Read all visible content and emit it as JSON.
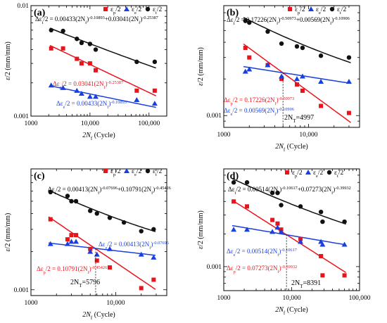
{
  "chart_data": [
    {
      "type": "scatter",
      "panel_label": "(a)",
      "x_scale": "log",
      "y_scale": "log",
      "xlim": [
        1000,
        200000
      ],
      "ylim": [
        0.001,
        0.01
      ],
      "x_ticks": [
        1000,
        10000,
        100000
      ],
      "x_tick_labels": [
        "1000",
        "10,000",
        "100,000"
      ],
      "y_ticks": [
        0.001,
        0.01
      ],
      "y_tick_labels": [
        "0.001",
        "0.01"
      ],
      "legend": [
        "εp/2",
        "εe/2",
        "εt/2"
      ],
      "colors": {
        "plastic": "#e8141b",
        "elastic": "#1a3fe0",
        "total": "#111111"
      },
      "series": [
        {
          "name": "εp/2",
          "marker": "square",
          "color": "#e8141b",
          "x": [
            2200,
            3500,
            6000,
            7200,
            10000,
            12500,
            62000,
            125000
          ],
          "y": [
            0.0041,
            0.0041,
            0.0033,
            0.003,
            0.003,
            0.0026,
            0.0017,
            0.0017
          ],
          "fit": {
            "coef": 0.03041,
            "exp": -0.25387
          }
        },
        {
          "name": "εe/2",
          "marker": "triangle",
          "color": "#1a3fe0",
          "x": [
            2200,
            3500,
            6000,
            7200,
            10000,
            12500,
            62000,
            125000
          ],
          "y": [
            0.0019,
            0.0018,
            0.0017,
            0.0016,
            0.0015,
            0.0015,
            0.0014,
            0.0013
          ],
          "fit": {
            "coef": 0.00433,
            "exp": -0.10893
          }
        },
        {
          "name": "εt/2",
          "marker": "circle",
          "color": "#111111",
          "x": [
            2200,
            3500,
            6000,
            7200,
            10000,
            12500,
            62000,
            125000
          ],
          "y": [
            0.006,
            0.0059,
            0.005,
            0.0046,
            0.0045,
            0.004,
            0.0031,
            0.0031
          ],
          "fit": {
            "coef": 0.00433,
            "exp": -0.10893,
            "coef2": 0.03041,
            "exp2": -0.25387
          }
        }
      ],
      "annotations": {
        "total": "Δεt/2 = 0.00433(2Nf)^-0.10893+0.03041(2Nf)^-0.25387",
        "plastic": "Δεp/2 = 0.03041(2Nf)^-0.25387",
        "elastic": "Δεe/2 = 0.00433(2Nf)^-0.10893"
      },
      "transition": null,
      "xlabel": "2Nf (Cycle)",
      "ylabel": "ε/2 (mm/mm)"
    },
    {
      "type": "scatter",
      "panel_label": "(b)",
      "x_scale": "log",
      "y_scale": "log",
      "xlim": [
        1000,
        40000
      ],
      "ylim": [
        0.0008,
        0.008
      ],
      "x_ticks": [
        1000,
        10000
      ],
      "x_tick_labels": [
        "1000",
        "10,000"
      ],
      "y_ticks": [
        0.001
      ],
      "y_tick_labels": [
        "0.001"
      ],
      "legend": [
        "εp/2",
        "εe/2",
        "εt/2"
      ],
      "colors": {
        "plastic": "#e8141b",
        "elastic": "#1a3fe0",
        "total": "#111111"
      },
      "series": [
        {
          "name": "εp/2",
          "marker": "square",
          "color": "#e8141b",
          "x": [
            1800,
            2000,
            3300,
            4800,
            7300,
            8500,
            14000,
            30000
          ],
          "y": [
            0.0036,
            0.003,
            0.0026,
            0.002,
            0.0018,
            0.0016,
            0.0012,
            0.00105
          ],
          "fit": {
            "coef": 0.17226,
            "exp": -0.50973
          }
        },
        {
          "name": "εe/2",
          "marker": "triangle",
          "color": "#1a3fe0",
          "x": [
            1800,
            2000,
            3300,
            4800,
            7300,
            8500,
            14000,
            30000
          ],
          "y": [
            0.0023,
            0.0024,
            0.0026,
            0.0021,
            0.002,
            0.0021,
            0.0019,
            0.0019
          ],
          "fit": {
            "coef": 0.00569,
            "exp": -0.10906
          }
        },
        {
          "name": "εt/2",
          "marker": "circle",
          "color": "#111111",
          "x": [
            1800,
            2000,
            3300,
            4800,
            7300,
            8500,
            14000,
            30000
          ],
          "y": [
            0.006,
            0.0058,
            0.0049,
            0.0039,
            0.0037,
            0.0036,
            0.0031,
            0.003
          ],
          "fit": {
            "coef": 0.00569,
            "exp": -0.10906,
            "coef2": 0.17226,
            "exp2": -0.50973
          }
        }
      ],
      "annotations": {
        "total": "Δεt/2 = 0.17226(2Nf)^-0.50973+0.00569(2Nf)^-0.10906",
        "plastic": "Δεp/2 = 0.17226(2Nf)^-0.50973",
        "elastic": "Δεe/2 = 0.00569(2Nf)^-0.10906"
      },
      "transition": {
        "label": "2NT=4997",
        "x": 4997
      },
      "xlabel": "2Nf (Cycle)",
      "ylabel": "ε/2 (mm/mm)"
    },
    {
      "type": "scatter",
      "panel_label": "(c)",
      "x_scale": "log",
      "y_scale": "log",
      "xlim": [
        1000,
        40000
      ],
      "ylim": [
        0.0009,
        0.009
      ],
      "x_ticks": [
        1000,
        10000
      ],
      "x_tick_labels": [
        "1000",
        "10,000"
      ],
      "y_ticks": [
        0.001
      ],
      "y_tick_labels": [
        "0.001"
      ],
      "legend": [
        "εp/2",
        "εe/2",
        "εt/2"
      ],
      "colors": {
        "plastic": "#e8141b",
        "elastic": "#1a3fe0",
        "total": "#111111"
      },
      "series": [
        {
          "name": "εp/2",
          "marker": "square",
          "color": "#e8141b",
          "x": [
            1700,
            2700,
            3000,
            3400,
            5000,
            6000,
            8500,
            20000,
            28000
          ],
          "y": [
            0.0036,
            0.0025,
            0.0027,
            0.0027,
            0.0021,
            0.0017,
            0.0015,
            0.00103,
            0.0012
          ],
          "fit": {
            "coef": 0.10791,
            "exp": -0.45426
          }
        },
        {
          "name": "εe/2",
          "marker": "triangle",
          "color": "#1a3fe0",
          "x": [
            1700,
            2700,
            3000,
            3400,
            5000,
            6000,
            8500,
            20000,
            28000
          ],
          "y": [
            0.0023,
            0.0023,
            0.0024,
            0.0024,
            0.002,
            0.0019,
            0.0021,
            0.0019,
            0.0018
          ],
          "fit": {
            "coef": 0.00413,
            "exp": -0.07696
          }
        },
        {
          "name": "εt/2",
          "marker": "circle",
          "color": "#111111",
          "x": [
            1700,
            2700,
            3000,
            3400,
            5000,
            6000,
            8500,
            12500,
            20000,
            28000
          ],
          "y": [
            0.0059,
            0.0055,
            0.005,
            0.005,
            0.0042,
            0.004,
            0.0037,
            0.0034,
            0.0029,
            0.003
          ],
          "fit": {
            "coef": 0.00413,
            "exp": -0.07696,
            "coef2": 0.10791,
            "exp2": -0.45426
          }
        }
      ],
      "annotations": {
        "total": "Δεt/2 = 0.00413(2Nf)^-0.07696+0.10791(2Nf)^-0.45426",
        "plastic": "Δεp/2 = 0.10791(2Nf)^-0.45426",
        "elastic": "Δεe/2 = 0.00413(2Nf)^-0.07696"
      },
      "transition": {
        "label": "2NT=5796",
        "x": 5796
      },
      "xlabel": "2Nf (Cycle)",
      "ylabel": "ε/2 (mm/mm)"
    },
    {
      "type": "scatter",
      "panel_label": "(d)",
      "x_scale": "log",
      "y_scale": "log",
      "xlim": [
        1000,
        100000
      ],
      "ylim": [
        0.0006,
        0.008
      ],
      "x_ticks": [
        1000,
        10000,
        100000
      ],
      "x_tick_labels": [
        "1000",
        "10,000",
        "100,000"
      ],
      "y_ticks": [
        0.001
      ],
      "y_tick_labels": [
        "0.001"
      ],
      "legend": [
        "εp/2",
        "εe/2",
        "εt/2"
      ],
      "colors": {
        "plastic": "#e8141b",
        "elastic": "#1a3fe0",
        "total": "#111111"
      },
      "series": [
        {
          "name": "εp/2",
          "marker": "square",
          "color": "#e8141b",
          "x": [
            1400,
            2200,
            5200,
            6200,
            7000,
            13500,
            27000,
            28500,
            60000
          ],
          "y": [
            0.004,
            0.0036,
            0.0027,
            0.0025,
            0.0022,
            0.0018,
            0.00125,
            0.00083,
            0.00083
          ],
          "fit": {
            "coef": 0.07273,
            "exp": -0.39932
          }
        },
        {
          "name": "εe/2",
          "marker": "triangle",
          "color": "#1a3fe0",
          "x": [
            1400,
            2200,
            5200,
            6200,
            7000,
            13500,
            27000,
            28500,
            60000
          ],
          "y": [
            0.0022,
            0.0022,
            0.0021,
            0.0023,
            0.0021,
            0.0017,
            0.0017,
            0.0016,
            0.0016
          ],
          "fit": {
            "coef": 0.00514,
            "exp": -0.10617
          }
        },
        {
          "name": "εt/2",
          "marker": "circle",
          "color": "#111111",
          "x": [
            1400,
            2200,
            5200,
            6200,
            7000,
            13500,
            27000,
            28500,
            60000
          ],
          "y": [
            0.006,
            0.006,
            0.0048,
            0.0048,
            0.0037,
            0.0036,
            0.0032,
            0.0026,
            0.0026
          ],
          "fit": {
            "coef": 0.00514,
            "exp": -0.10617,
            "coef2": 0.07273,
            "exp2": -0.39932
          }
        }
      ],
      "annotations": {
        "total": "Δεt/2 = 0.00514(2Nf)^-0.10617+0.07273(2Nf)^-0.39932",
        "plastic": "Δεp/2 = 0.07273(2Nf)^-0.39932",
        "elastic": "Δεe/2 = 0.00514(2Nf)^-0.10617"
      },
      "transition": {
        "label": "2NT=8391",
        "x": 8391
      },
      "xlabel": "2Nf (Cycle)",
      "ylabel": "ε/2 (mm/mm)"
    }
  ]
}
